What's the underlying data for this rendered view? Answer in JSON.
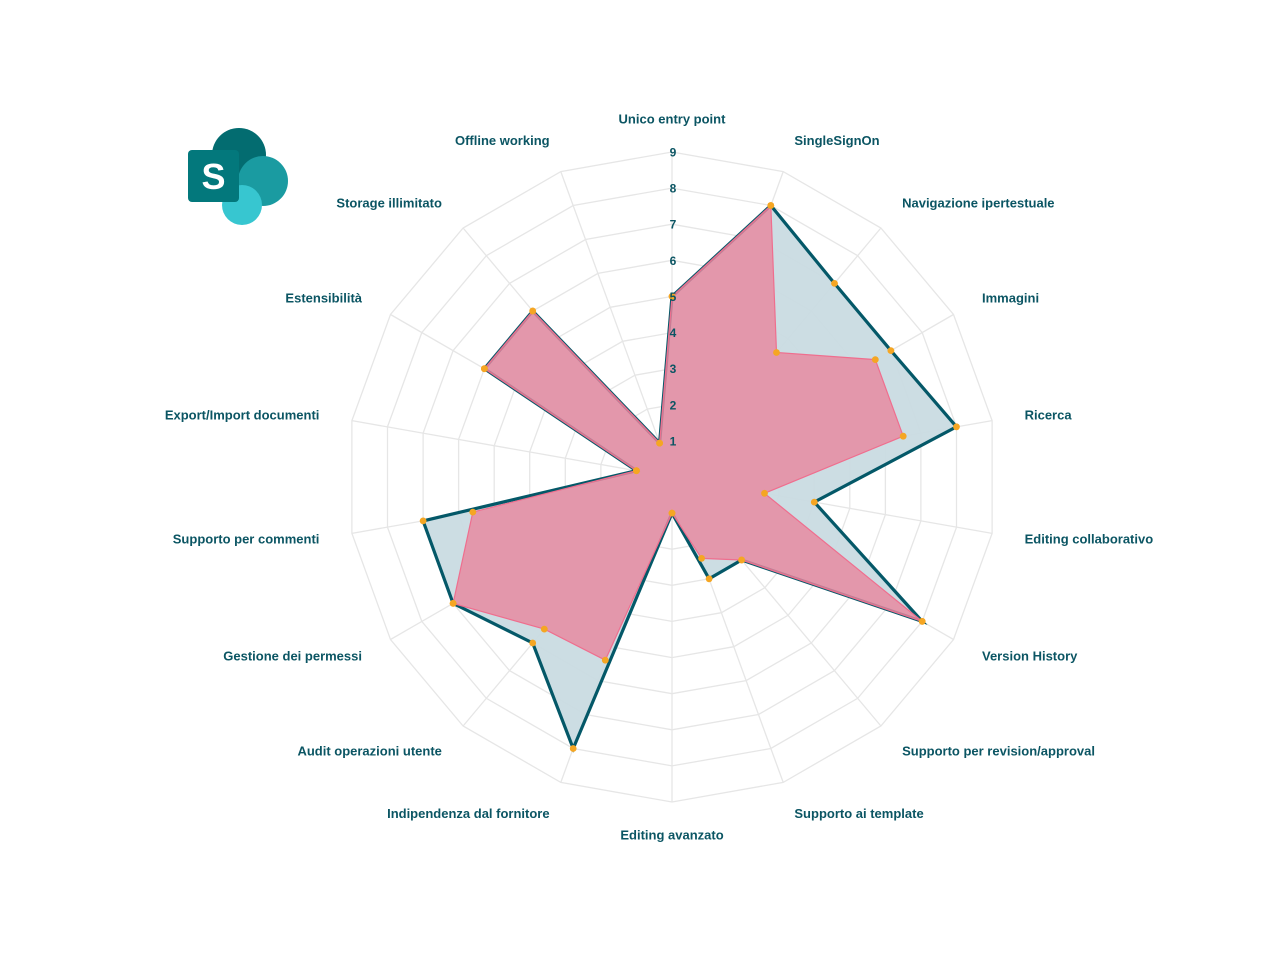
{
  "logo": {
    "letter": "S",
    "colors": {
      "dark": "#036c70",
      "mid": "#1a9ba1",
      "light": "#37c6d0",
      "tile": "#03787c"
    }
  },
  "chart_data": {
    "type": "radar",
    "categories": [
      "Unico entry point",
      "SingleSignOn",
      "Navigazione ipertestuale",
      "Immagini",
      "Ricerca",
      "Editing collaborativo",
      "Version History",
      "Supporto per revision/approval",
      "Supporto ai template",
      "Editing avanzato",
      "Indipendenza dal fornitore",
      "Audit operazioni utente",
      "Gestione dei permessi",
      "Supporto per commenti",
      "Export/Import documenti",
      "Estensibilità",
      "Storage illimitato",
      "Offline working"
    ],
    "ticks": [
      "1",
      "2",
      "3",
      "4",
      "5",
      "6",
      "7",
      "8",
      "9"
    ],
    "rlim": [
      0,
      9
    ],
    "series": [
      {
        "values": [
          5,
          8,
          7,
          7,
          8,
          4,
          8,
          3,
          3,
          1,
          8,
          6,
          7,
          7,
          1,
          6,
          6,
          1
        ],
        "color": "#045868",
        "fill": "#c9dbe1"
      },
      {
        "values": [
          5,
          8,
          4.5,
          6.5,
          6.5,
          2.6,
          8,
          3,
          2.4,
          1,
          5.4,
          5.5,
          7,
          5.6,
          1,
          6,
          6,
          1
        ],
        "color": "#ef6e8e",
        "fill": "#e8889f"
      }
    ],
    "colors": {
      "marker": "#f5a623",
      "grid": "#e6e6e6"
    }
  }
}
